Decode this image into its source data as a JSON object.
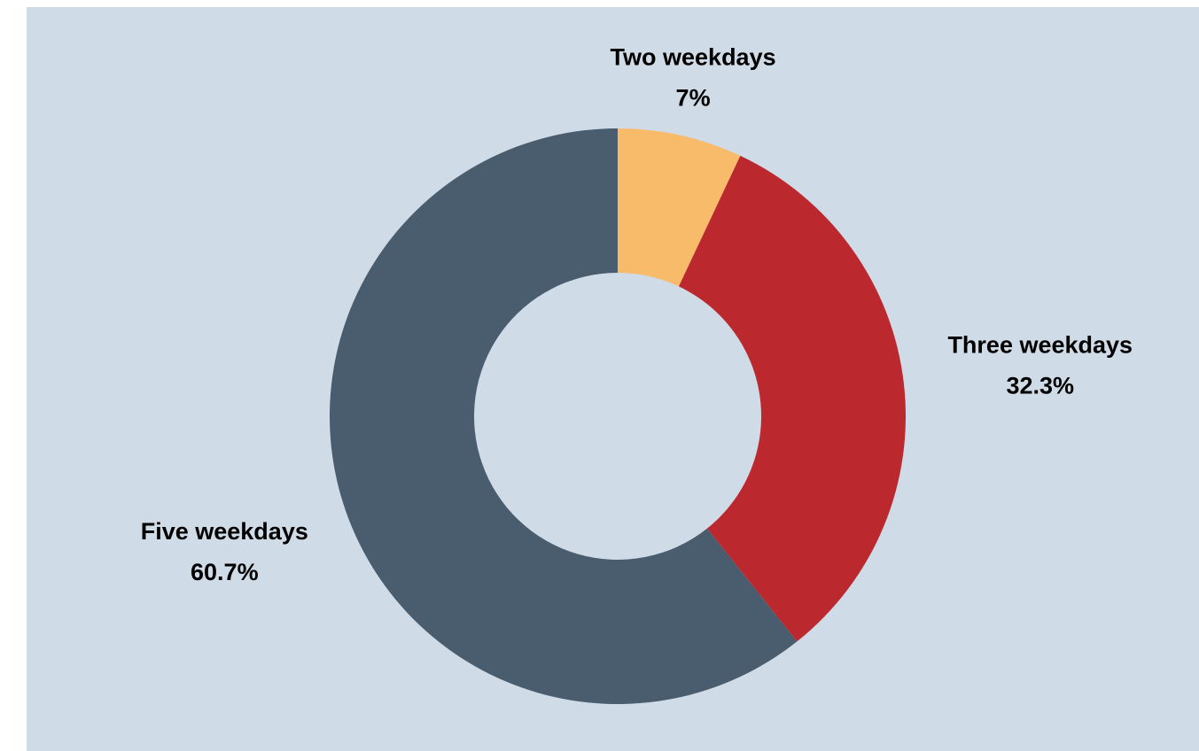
{
  "chart_data": {
    "type": "donut",
    "categories": [
      "Two weekdays",
      "Three weekdays",
      "Five weekdays"
    ],
    "values": [
      7,
      32.3,
      60.7
    ],
    "value_labels": [
      "7%",
      "32.3%",
      "60.7%"
    ],
    "colors": [
      "#f8bb6a",
      "#bb282d",
      "#4a5d6e"
    ]
  }
}
